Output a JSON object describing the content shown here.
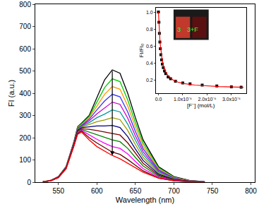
{
  "chart_data": [
    {
      "type": "line",
      "x_label": "Wavelength (nm)",
      "y_label": "FI (a.u.)",
      "x": [
        530,
        540,
        550,
        560,
        570,
        575,
        580,
        590,
        600,
        610,
        620,
        630,
        640,
        650,
        660,
        680,
        700,
        720,
        740
      ],
      "series": [
        {
          "color": "#000000",
          "values": [
            2,
            8,
            25,
            70,
            180,
            250,
            265,
            300,
            380,
            460,
            505,
            490,
            400,
            290,
            190,
            70,
            25,
            8,
            2
          ]
        },
        {
          "color": "#00cc00",
          "values": [
            2,
            8,
            25,
            70,
            178,
            248,
            262,
            295,
            360,
            425,
            465,
            452,
            370,
            268,
            176,
            65,
            23,
            7,
            2
          ]
        },
        {
          "color": "#ff9900",
          "values": [
            2,
            8,
            24,
            69,
            177,
            246,
            258,
            290,
            342,
            395,
            430,
            418,
            343,
            248,
            163,
            60,
            21,
            7,
            2
          ]
        },
        {
          "color": "#3333ff",
          "values": [
            2,
            7,
            24,
            68,
            176,
            244,
            255,
            283,
            325,
            365,
            395,
            384,
            316,
            228,
            150,
            55,
            19,
            6,
            2
          ]
        },
        {
          "color": "#cc00cc",
          "values": [
            2,
            7,
            24,
            68,
            175,
            242,
            252,
            276,
            307,
            335,
            360,
            350,
            288,
            208,
            137,
            50,
            18,
            6,
            2
          ]
        },
        {
          "color": "#009999",
          "values": [
            2,
            7,
            23,
            67,
            174,
            240,
            250,
            268,
            290,
            306,
            325,
            316,
            261,
            189,
            124,
            46,
            16,
            5,
            1
          ]
        },
        {
          "color": "#999900",
          "values": [
            2,
            7,
            23,
            66,
            172,
            237,
            247,
            260,
            272,
            280,
            290,
            281,
            233,
            169,
            111,
            41,
            14,
            5,
            1
          ]
        },
        {
          "color": "#000080",
          "values": [
            2,
            7,
            23,
            65,
            170,
            234,
            245,
            250,
            253,
            253,
            255,
            246,
            205,
            149,
            98,
            36,
            12,
            4,
            1
          ]
        },
        {
          "color": "#800000",
          "values": [
            2,
            7,
            22,
            64,
            168,
            230,
            240,
            238,
            232,
            225,
            220,
            212,
            177,
            129,
            85,
            31,
            11,
            4,
            1
          ]
        },
        {
          "color": "#008000",
          "values": [
            2,
            6,
            22,
            63,
            166,
            226,
            237,
            225,
            212,
            200,
            190,
            182,
            152,
            111,
            73,
            27,
            9,
            3,
            1
          ]
        },
        {
          "color": "#ff00ff",
          "values": [
            2,
            6,
            21,
            62,
            164,
            222,
            233,
            212,
            193,
            175,
            160,
            152,
            127,
            93,
            61,
            23,
            8,
            3,
            1
          ]
        },
        {
          "color": "#660000",
          "values": [
            2,
            6,
            21,
            61,
            162,
            219,
            230,
            200,
            176,
            155,
            135,
            125,
            102,
            76,
            51,
            19,
            7,
            2,
            1
          ]
        },
        {
          "color": "#ff0000",
          "values": [
            2,
            6,
            20,
            60,
            160,
            215,
            225,
            190,
            160,
            140,
            120,
            105,
            85,
            65,
            45,
            18,
            6,
            2,
            1
          ]
        }
      ],
      "xlim": [
        520,
        805
      ],
      "xticks": [
        550,
        600,
        650,
        700,
        750,
        800
      ],
      "ylim": [
        0,
        800
      ],
      "yticks": [
        0,
        100,
        200,
        300,
        400,
        500,
        600,
        700,
        800
      ],
      "grid": false
    },
    {
      "type": "scatter",
      "x_label": "[F⁻] (mol/L)",
      "y_label": "FI/FI₀",
      "series": [
        {
          "type": "scatter",
          "marker": "square",
          "color": "#000000",
          "x": [
            0,
            2e-08,
            4e-08,
            6e-08,
            8e-08,
            1e-07,
            1.3e-07,
            1.6e-07,
            2e-07,
            2.5e-07,
            3e-07,
            4e-07,
            5e-07,
            7e-07,
            1e-06,
            1.3e-06,
            1.8e-06,
            2.4e-06,
            3e-06,
            3.4e-06
          ],
          "values": [
            1.0,
            0.88,
            0.75,
            0.65,
            0.57,
            0.5,
            0.44,
            0.39,
            0.35,
            0.31,
            0.28,
            0.24,
            0.22,
            0.19,
            0.17,
            0.16,
            0.145,
            0.135,
            0.125,
            0.12
          ]
        },
        {
          "type": "line",
          "color": "#ff0000",
          "x": [
            0,
            1e-08,
            2e-08,
            4e-08,
            6e-08,
            8e-08,
            1e-07,
            1.5e-07,
            2e-07,
            3e-07,
            4e-07,
            6e-07,
            8e-07,
            1e-06,
            1.5e-06,
            2e-06,
            2.5e-06,
            3e-06,
            3.5e-06
          ],
          "values": [
            1.0,
            0.93,
            0.87,
            0.77,
            0.68,
            0.61,
            0.55,
            0.45,
            0.38,
            0.3,
            0.255,
            0.205,
            0.18,
            0.165,
            0.145,
            0.135,
            0.128,
            0.123,
            0.12
          ]
        }
      ],
      "xlim": [
        -1e-07,
        3.6e-06
      ],
      "xticks": [
        {
          "value": 0,
          "label": "0.0"
        },
        {
          "value": 1e-06,
          "label": "1.0x10⁻⁶"
        },
        {
          "value": 2e-06,
          "label": "2.0x10⁻⁶"
        },
        {
          "value": 3e-06,
          "label": "3.0x10⁻⁶"
        }
      ],
      "ylim": [
        0.05,
        1.05
      ],
      "yticks": [
        {
          "value": 0.2,
          "label": "0.2"
        },
        {
          "value": 0.4,
          "label": "0.4"
        },
        {
          "value": 0.6,
          "label": "0.6"
        },
        {
          "value": 0.8,
          "label": "0.8"
        },
        {
          "value": 1,
          "label": "1.0"
        }
      ],
      "grid": false,
      "annotations": [
        {
          "text": "3"
        },
        {
          "text": "3+F"
        }
      ]
    }
  ]
}
